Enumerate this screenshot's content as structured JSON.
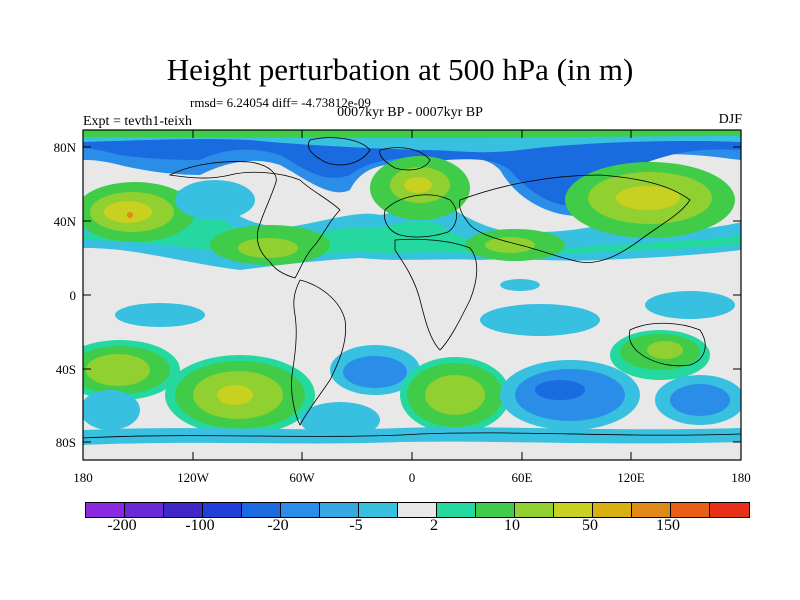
{
  "title": "Height perturbation at 500 hPa (in m)",
  "stats": "rmsd= 6.24054 diff= -4.73812e-09",
  "period": "0007kyr BP - 0007kyr BP",
  "experiment": "Expt = tevth1-teixh",
  "season": "DJF",
  "lat_labels": [
    "80N",
    "40N",
    "0",
    "40S",
    "80S"
  ],
  "lon_labels": [
    "180",
    "120W",
    "60W",
    "0",
    "60E",
    "120E",
    "180"
  ],
  "colorbar": {
    "colors": [
      "#8a2be2",
      "#6a2ad6",
      "#4028c8",
      "#2040d8",
      "#1a6ae0",
      "#2a8ee8",
      "#37a8e2",
      "#38c0e0",
      "#e8e8e8",
      "#24d8a0",
      "#40cc48",
      "#90d030",
      "#c8d020",
      "#d8b010",
      "#e08818",
      "#e86018",
      "#e83018"
    ],
    "labels": [
      "-200",
      "-100",
      "-20",
      "-5",
      "2",
      "10",
      "50",
      "150"
    ]
  },
  "colors": {
    "neutral": "#e8e8e8",
    "cyan": "#38c0e0",
    "lightblue": "#2a8ee8",
    "blue": "#1a6ae0",
    "green": "#40cc48",
    "yellowgreen": "#90d030",
    "yellow": "#c8d020",
    "orange": "#e08818"
  }
}
